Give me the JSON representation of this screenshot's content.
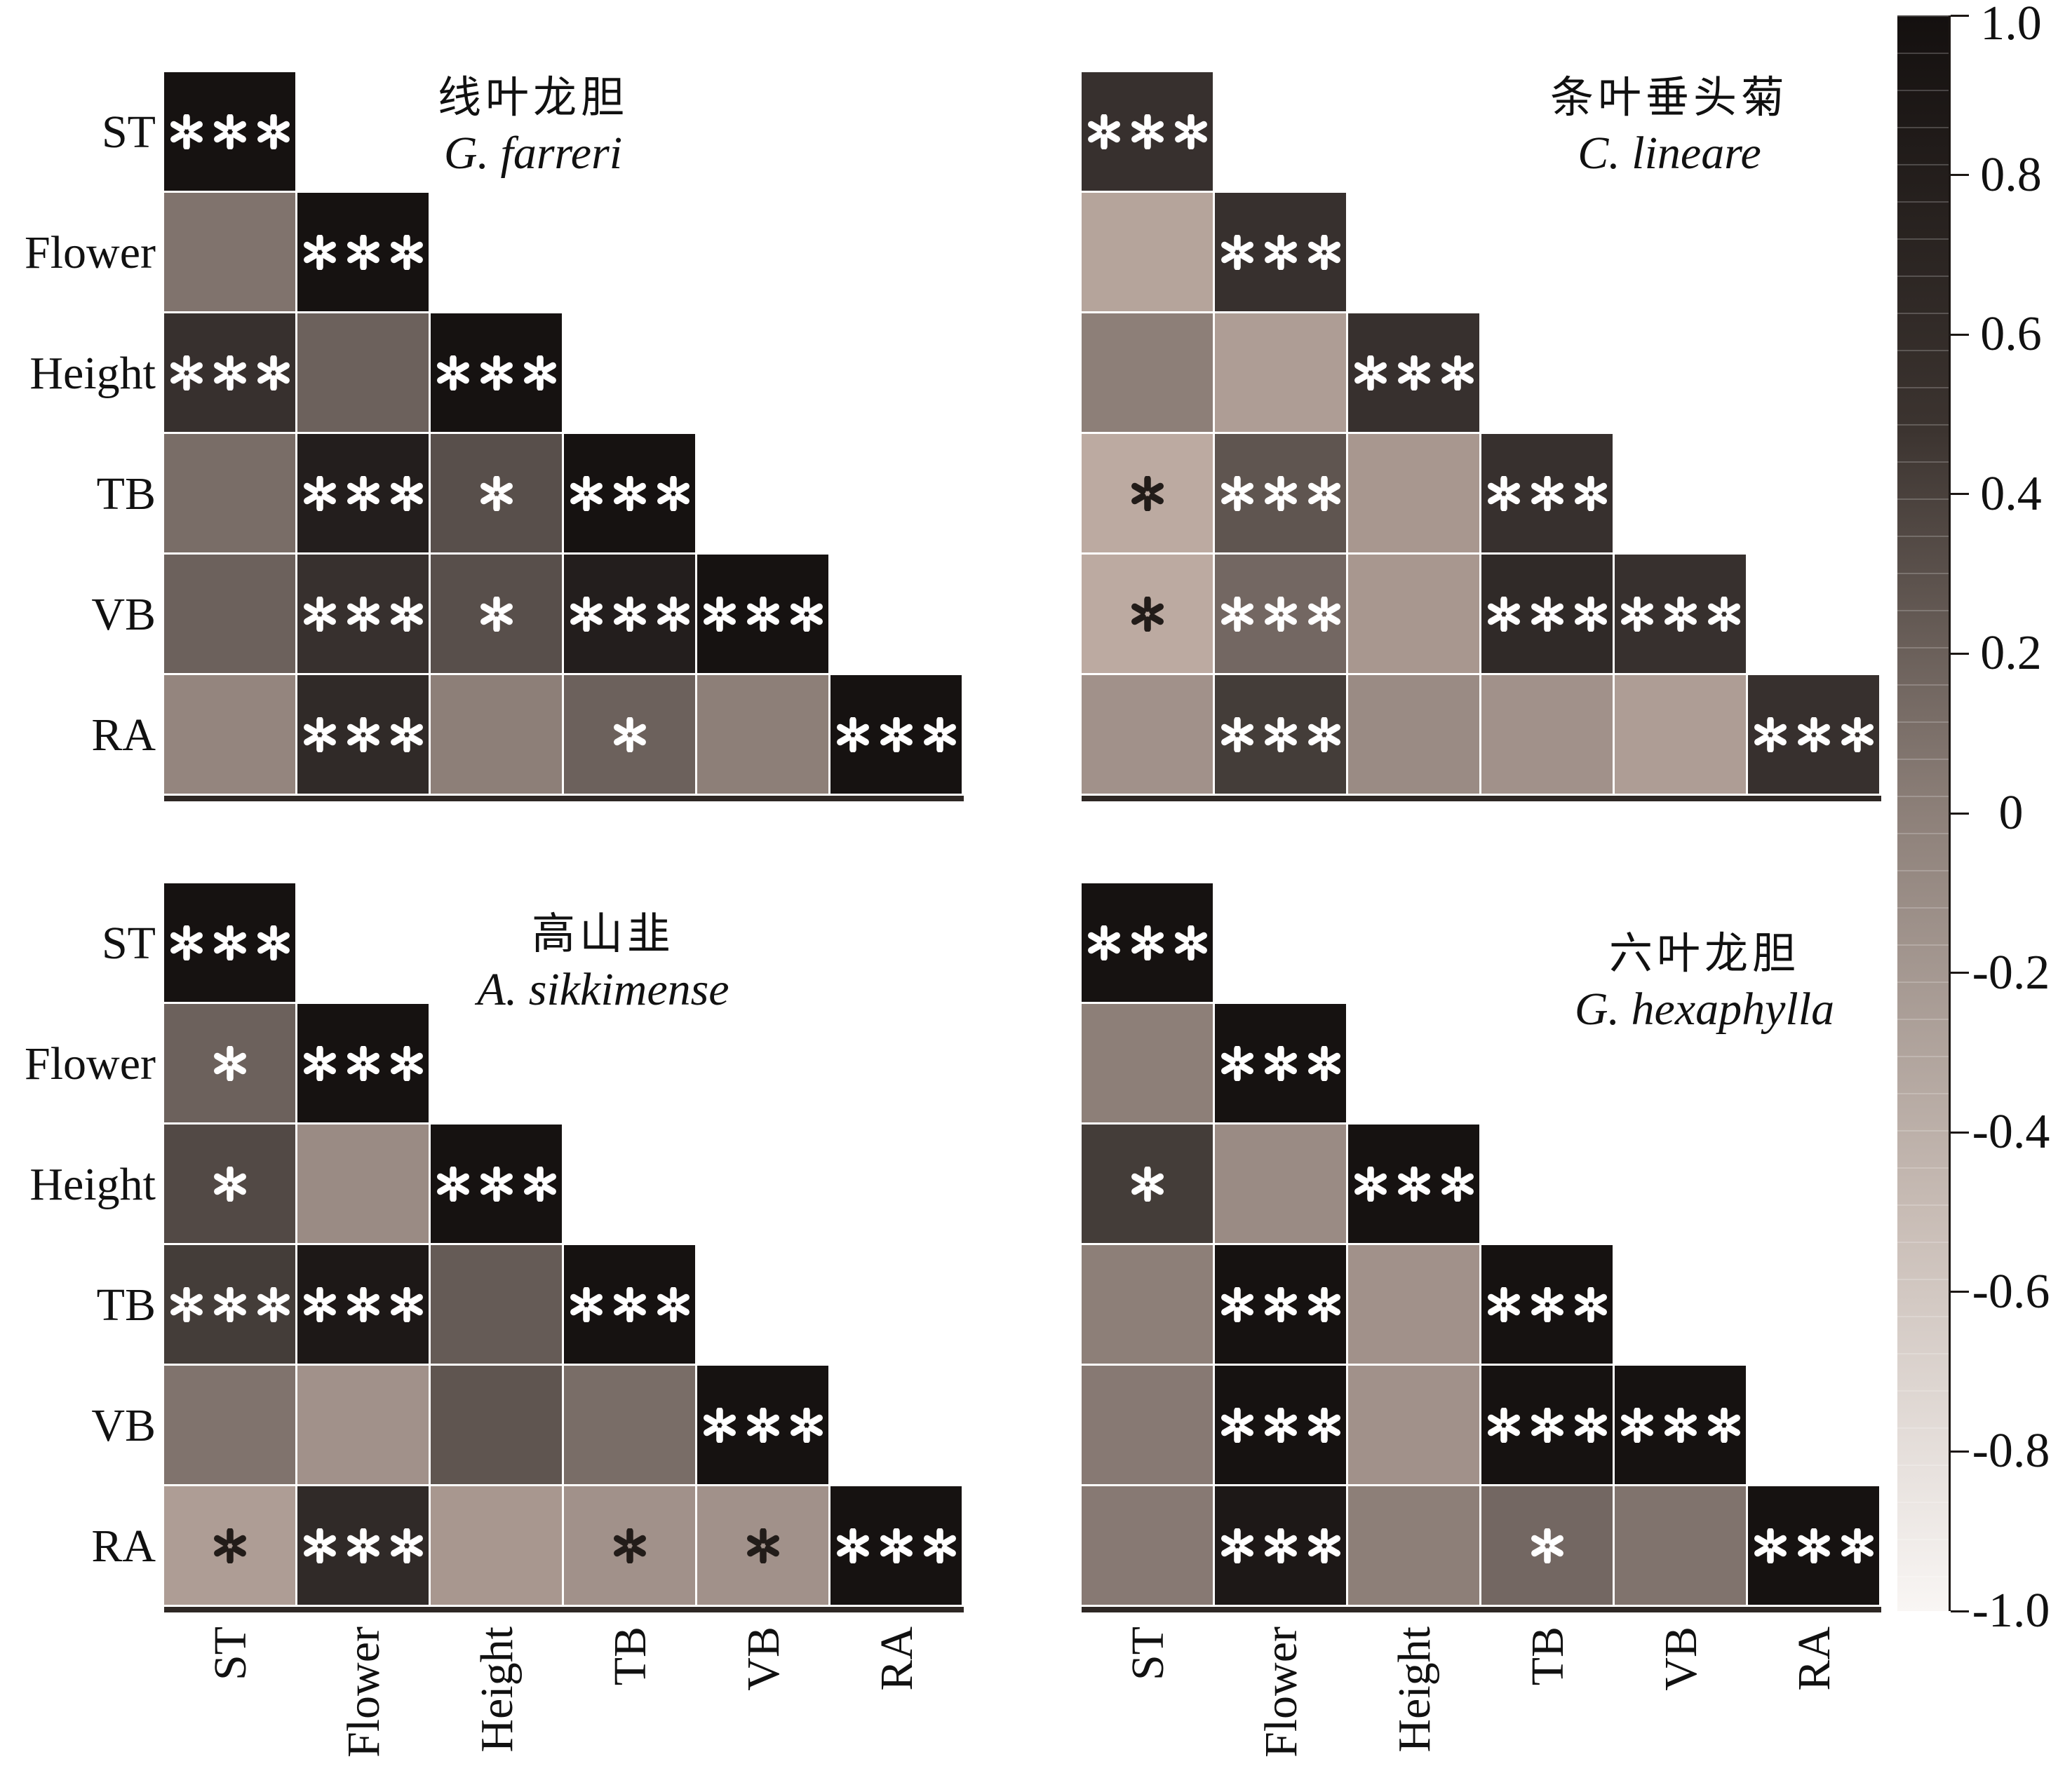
{
  "traits": [
    "ST",
    "Flower",
    "Height",
    "TB",
    "VB",
    "RA"
  ],
  "colorbar": {
    "max": 1.0,
    "min": -1.0,
    "tick_labels": [
      "1.0",
      "0.8",
      "0.6",
      "0.4",
      "0.2",
      "0",
      "-0.2",
      "-0.4",
      "-0.6",
      "-0.8",
      "-1.0"
    ]
  },
  "chart_data": [
    {
      "type": "heatmap",
      "panel": "top-left",
      "title_zh": "线叶龙胆",
      "title_latin": "G. farreri",
      "triangle": "lower",
      "rows": [
        "ST",
        "Flower",
        "Height",
        "TB",
        "VB",
        "RA"
      ],
      "cols": [
        "ST",
        "Flower",
        "Height",
        "TB",
        "VB",
        "RA"
      ],
      "values": [
        [
          0.85
        ],
        [
          0.05,
          0.85
        ],
        [
          0.6,
          0.2,
          0.85
        ],
        [
          0.1,
          0.75,
          0.35,
          0.85
        ],
        [
          0.2,
          0.6,
          0.35,
          0.75,
          0.85
        ],
        [
          -0.1,
          0.65,
          -0.05,
          0.2,
          -0.05,
          0.85
        ]
      ],
      "significance": [
        [
          "***"
        ],
        [
          "",
          "***"
        ],
        [
          "***",
          "",
          "***"
        ],
        [
          "",
          "***",
          "*",
          "***"
        ],
        [
          "",
          "***",
          "*",
          "***",
          "***"
        ],
        [
          "",
          "***",
          "",
          "*",
          "",
          "***"
        ]
      ]
    },
    {
      "type": "heatmap",
      "panel": "top-right",
      "title_zh": "条叶垂头菊",
      "title_latin": "C. lineare",
      "triangle": "lower",
      "rows": [
        "ST",
        "Flower",
        "Height",
        "TB",
        "VB",
        "RA"
      ],
      "cols": [
        "ST",
        "Flower",
        "Height",
        "TB",
        "VB",
        "RA"
      ],
      "values": [
        [
          0.6
        ],
        [
          -0.35,
          0.6
        ],
        [
          -0.05,
          -0.3,
          0.6
        ],
        [
          -0.4,
          0.3,
          -0.25,
          0.6
        ],
        [
          -0.4,
          0.15,
          -0.25,
          0.65,
          0.6
        ],
        [
          -0.2,
          0.5,
          -0.15,
          -0.2,
          -0.3,
          0.6
        ]
      ],
      "significance": [
        [
          "***"
        ],
        [
          "",
          "***"
        ],
        [
          "",
          "",
          "***"
        ],
        [
          "*",
          "***",
          "",
          "***"
        ],
        [
          "*",
          "***",
          "",
          "***",
          "***"
        ],
        [
          "",
          "***",
          "",
          "",
          "",
          "***"
        ]
      ]
    },
    {
      "type": "heatmap",
      "panel": "bottom-left",
      "title_zh": "高山韭",
      "title_latin": "A. sikkimense",
      "triangle": "lower",
      "rows": [
        "ST",
        "Flower",
        "Height",
        "TB",
        "VB",
        "RA"
      ],
      "cols": [
        "ST",
        "Flower",
        "Height",
        "TB",
        "VB",
        "RA"
      ],
      "values": [
        [
          0.85
        ],
        [
          0.2,
          0.85
        ],
        [
          0.4,
          -0.15,
          0.85
        ],
        [
          0.5,
          0.8,
          0.25,
          0.85
        ],
        [
          0.05,
          -0.2,
          0.3,
          0.1,
          0.85
        ],
        [
          -0.3,
          0.65,
          -0.25,
          -0.2,
          -0.2,
          0.85
        ]
      ],
      "significance": [
        [
          "***"
        ],
        [
          "*",
          "***"
        ],
        [
          "*",
          "",
          "***"
        ],
        [
          "***",
          "***",
          "",
          "***"
        ],
        [
          "",
          "",
          "",
          "",
          "***"
        ],
        [
          "*",
          "***",
          "",
          "*",
          "*",
          "***"
        ]
      ]
    },
    {
      "type": "heatmap",
      "panel": "bottom-right",
      "title_zh": "六叶龙胆",
      "title_latin": "G. hexaphylla",
      "triangle": "lower",
      "rows": [
        "ST",
        "Flower",
        "Height",
        "TB",
        "VB",
        "RA"
      ],
      "cols": [
        "ST",
        "Flower",
        "Height",
        "TB",
        "VB",
        "RA"
      ],
      "values": [
        [
          0.85
        ],
        [
          -0.05,
          0.85
        ],
        [
          0.5,
          -0.15,
          0.85
        ],
        [
          -0.05,
          0.85,
          -0.2,
          0.85
        ],
        [
          0.0,
          0.85,
          -0.2,
          0.85,
          0.85
        ],
        [
          0.0,
          0.8,
          -0.05,
          0.15,
          0.05,
          0.85
        ]
      ],
      "significance": [
        [
          "***"
        ],
        [
          "",
          "***"
        ],
        [
          "*",
          "",
          "***"
        ],
        [
          "",
          "***",
          "",
          "***"
        ],
        [
          "",
          "***",
          "",
          "***",
          "***"
        ],
        [
          "",
          "***",
          "",
          "*",
          "",
          "***"
        ]
      ]
    }
  ]
}
